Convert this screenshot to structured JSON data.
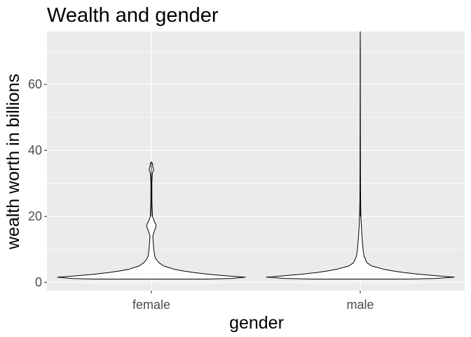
{
  "chart_data": {
    "type": "violin",
    "title": "Wealth and gender",
    "xlabel": "gender",
    "ylabel": "wealth worth in billions",
    "categories": [
      "female",
      "male"
    ],
    "ylim": [
      -2.5,
      76
    ],
    "yticks": [
      0,
      20,
      40,
      60
    ],
    "grid": true,
    "legend": "none",
    "colors": {
      "panel": "#ebebeb",
      "grid": "#ffffff",
      "violin_fill": "#ffffff",
      "violin_stroke": "#000000",
      "tick_text": "#4d4d4d",
      "tick_mark": "#333333"
    },
    "series": [
      {
        "category": "female",
        "min": 1.0,
        "max": 36.5,
        "profile": [
          [
            1.0,
            0.6
          ],
          [
            1.2,
            0.85
          ],
          [
            1.6,
            1.0
          ],
          [
            2.0,
            0.8
          ],
          [
            2.5,
            0.6
          ],
          [
            3.0,
            0.45
          ],
          [
            3.5,
            0.33
          ],
          [
            4.0,
            0.24
          ],
          [
            5.0,
            0.13
          ],
          [
            6.0,
            0.08
          ],
          [
            7.0,
            0.05
          ],
          [
            8.0,
            0.035
          ],
          [
            10.0,
            0.025
          ],
          [
            12.0,
            0.02
          ],
          [
            14.0,
            0.015
          ],
          [
            15.5,
            0.03
          ],
          [
            16.5,
            0.045
          ],
          [
            17.5,
            0.05
          ],
          [
            18.5,
            0.03
          ],
          [
            20.0,
            0.012
          ],
          [
            24.0,
            0.006
          ],
          [
            30.0,
            0.005
          ],
          [
            33.0,
            0.01
          ],
          [
            34.2,
            0.025
          ],
          [
            35.0,
            0.015
          ],
          [
            36.0,
            0.012
          ],
          [
            36.5,
            0.0
          ]
        ]
      },
      {
        "category": "male",
        "min": 1.0,
        "max": 76.0,
        "profile": [
          [
            1.0,
            0.5
          ],
          [
            1.2,
            0.8
          ],
          [
            1.6,
            1.0
          ],
          [
            2.0,
            0.82
          ],
          [
            2.5,
            0.62
          ],
          [
            3.0,
            0.46
          ],
          [
            3.5,
            0.34
          ],
          [
            4.0,
            0.25
          ],
          [
            5.0,
            0.12
          ],
          [
            6.0,
            0.07
          ],
          [
            8.0,
            0.04
          ],
          [
            10.0,
            0.03
          ],
          [
            14.0,
            0.018
          ],
          [
            18.0,
            0.01
          ],
          [
            20.0,
            0.007
          ],
          [
            25.0,
            0.004
          ],
          [
            30.0,
            0.003
          ],
          [
            40.0,
            0.002
          ],
          [
            50.0,
            0.0015
          ],
          [
            60.0,
            0.001
          ],
          [
            70.0,
            0.001
          ],
          [
            76.0,
            0.0
          ]
        ]
      }
    ]
  }
}
